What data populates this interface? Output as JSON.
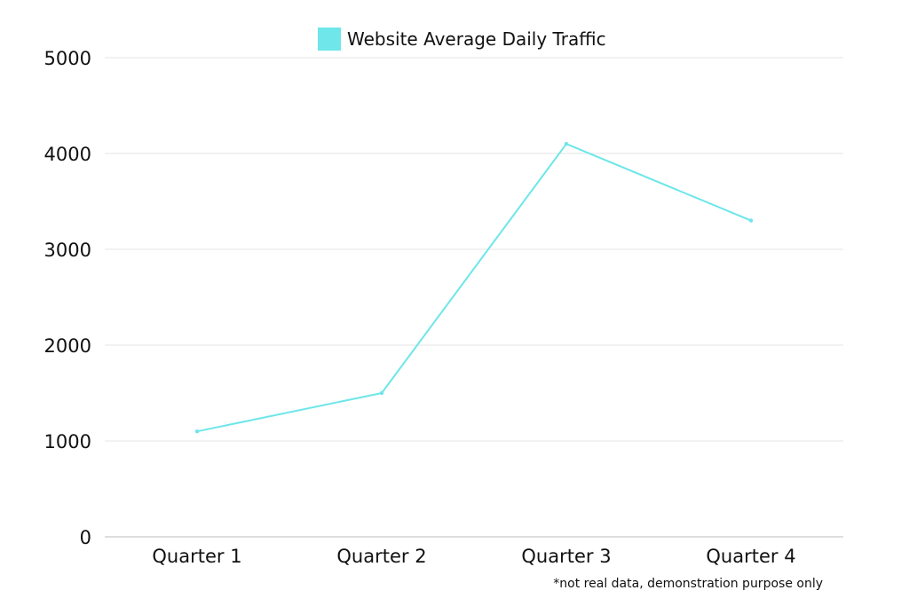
{
  "chart_data": {
    "type": "line",
    "categories": [
      "Quarter 1",
      "Quarter 2",
      "Quarter 3",
      "Quarter 4"
    ],
    "series": [
      {
        "name": "Website Average Daily Traffic",
        "values": [
          1100,
          1500,
          4100,
          3300
        ],
        "color": "#6ee6ea"
      }
    ],
    "yticks": [
      "0",
      "1000",
      "2000",
      "3000",
      "4000",
      "5000"
    ],
    "ylim": [
      0,
      5000
    ],
    "grid": true,
    "legend_position": "top-center",
    "annotation": "*not real data, demonstration purpose only"
  }
}
